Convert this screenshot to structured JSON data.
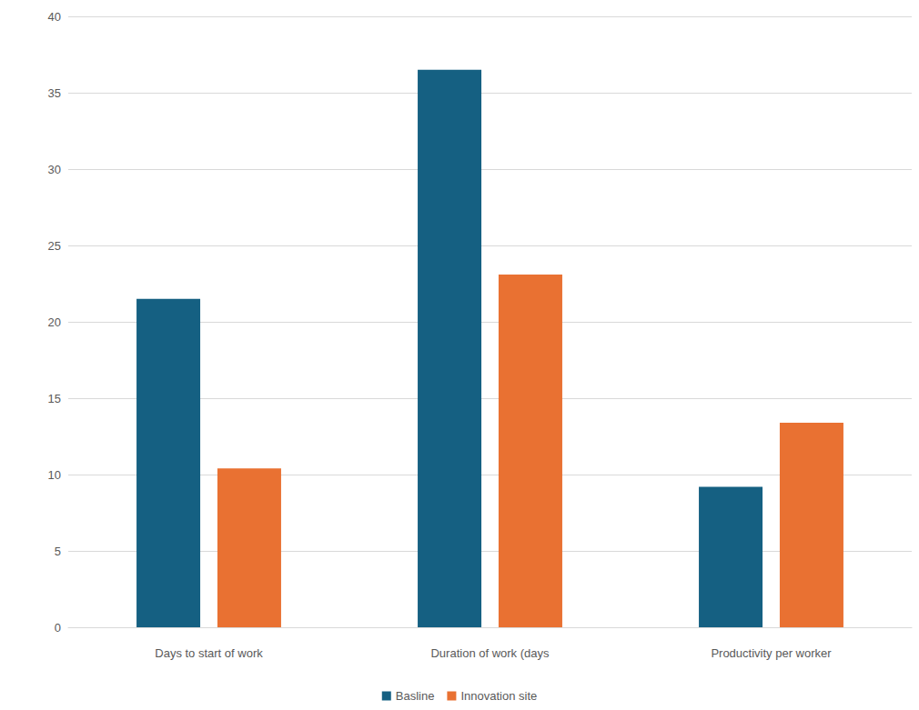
{
  "chart_data": {
    "type": "bar",
    "categories": [
      "Days to start of work",
      "Duration of work (days",
      "Productivity per worker"
    ],
    "series": [
      {
        "name": "Basline",
        "color": "#156082",
        "values": [
          21.5,
          36.5,
          9.2
        ]
      },
      {
        "name": "Innovation site",
        "color": "#E97132",
        "values": [
          10.4,
          23.1,
          13.4
        ]
      }
    ],
    "ylim": [
      0,
      40
    ],
    "yticks": [
      0,
      5,
      10,
      15,
      20,
      25,
      30,
      35,
      40
    ],
    "grid": true,
    "legend": "bottom"
  }
}
